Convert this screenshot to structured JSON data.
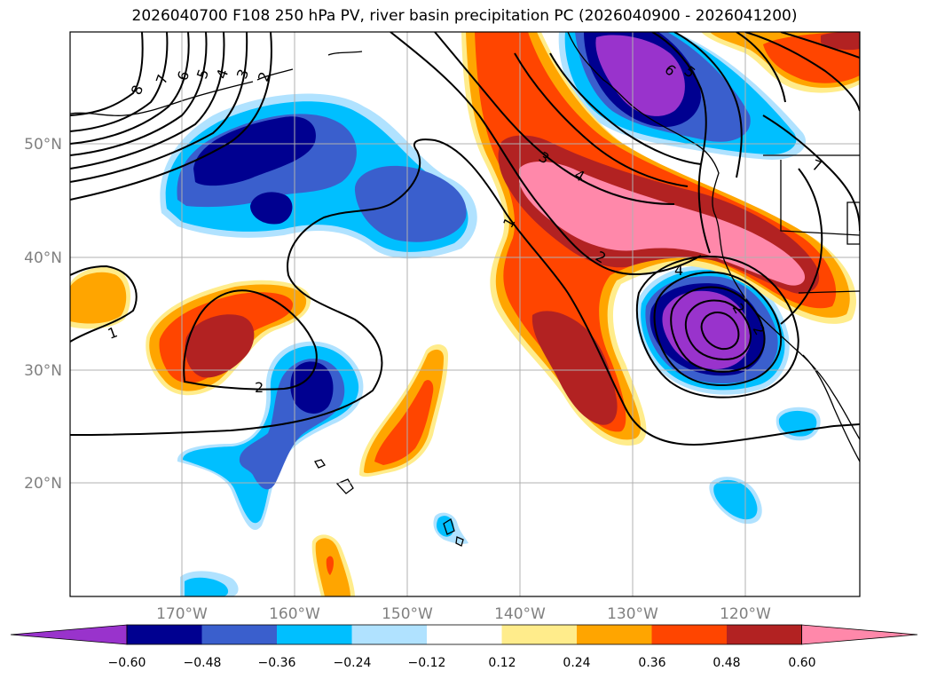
{
  "title": "2026040700 F108 250 hPa PV, river basin precipitation PC (2026040900 - 2026041200)",
  "lat_labels": [
    "50°N",
    "40°N",
    "30°N",
    "20°N"
  ],
  "lon_labels": [
    "170°W",
    "160°W",
    "150°W",
    "140°W",
    "130°W",
    "120°W"
  ],
  "colorbar": {
    "ticks": [
      "−0.60",
      "−0.48",
      "−0.36",
      "−0.24",
      "−0.12",
      "0.12",
      "0.24",
      "0.36",
      "0.48",
      "0.60"
    ],
    "colors": [
      "#9933cc",
      "#000090",
      "#3a5fcd",
      "#00bfff",
      "#b0e2ff",
      "#ffffff",
      "#ffec8b",
      "#ffa500",
      "#ff4500",
      "#b22222",
      "#ff88aa"
    ]
  },
  "contour_labels": [
    "8",
    "7",
    "6",
    "5",
    "4",
    "3",
    "2",
    "1",
    "1",
    "2",
    "1",
    "3",
    "4",
    "2",
    "4",
    "7",
    "6",
    "5",
    "1",
    "2",
    "2"
  ],
  "palette": {
    "purple": "#9933cc",
    "navy": "#000090",
    "blue": "#3a5fcd",
    "cyan": "#00bfff",
    "lightblue": "#b0e2ff",
    "yellow": "#ffec8b",
    "orange": "#ffa500",
    "redorange": "#ff4500",
    "darkred": "#b22222",
    "pink": "#ff88aa"
  }
}
